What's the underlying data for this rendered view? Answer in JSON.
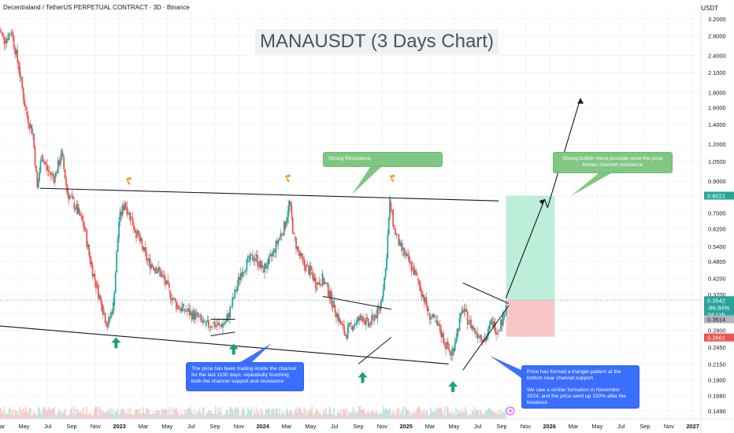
{
  "header": {
    "symbol_line": "Decentraland / TetherUS PERPETUAL CONTRACT · 3D · Binance",
    "currency": "USDT"
  },
  "annotations": {
    "title": "MANAUSDT (3 Days Chart)",
    "strong_resistance": "Strong Resistance",
    "bullish_note": "Strong bullish move possible once the price breaks channel resistance",
    "channel_note": "The price has been trading inside the channel for the last 1100 days, repeatedly touching both the channel support and resistance",
    "triangle_note_1": "Price has formed a triangle pattern at the bottom near channel support.",
    "triangle_note_2": "We saw a similar formation in November 2024, and the price went up 150% after the breakout."
  },
  "colors": {
    "up": "#26a69a",
    "down": "#ef5350",
    "target_zone": "#b2ebd3",
    "stop_zone": "#f8c0c0",
    "support_arrow": "#1e9e7e",
    "resistance_marker": "#f0a030"
  },
  "chart_data": {
    "type": "candlestick",
    "title": "MANAUSDT (3 Days Chart)",
    "scale": "log",
    "ylim": [
      0.14,
      3.4
    ],
    "x_ticks": [
      "Mar",
      "May",
      "Jul",
      "Sep",
      "Nov",
      "2023",
      "Mar",
      "May",
      "Jul",
      "Sep",
      "Nov",
      "2024",
      "Mar",
      "May",
      "Jul",
      "Sep",
      "Nov",
      "2025",
      "Mar",
      "May",
      "Jul",
      "Sep",
      "Nov",
      "2026",
      "Mar",
      "May",
      "Jul",
      "Sep",
      "Nov",
      "2027"
    ],
    "y_ticks": [
      3.2,
      2.8,
      2.4,
      2.1,
      1.8,
      1.6,
      1.4,
      1.2,
      1.05,
      0.9,
      0.8,
      0.7,
      0.62,
      0.54,
      0.48,
      0.42,
      0.37,
      0.32,
      0.28,
      0.245,
      0.215,
      0.19,
      0.168,
      0.149
    ],
    "y_tick_labels": [
      "3.2000",
      "2.8000",
      "2.4000",
      "2.1000",
      "1.8000",
      "1.6000",
      "1.4000",
      "1.2000",
      "1.0500",
      "0.9000",
      "0.8000",
      "0.7000",
      "0.6200",
      "0.5400",
      "0.4800",
      "0.4200",
      "0.3700",
      "0.3200",
      "0.2800",
      "0.2450",
      "0.2150",
      "0.1900",
      "0.1680",
      "0.1490"
    ],
    "price_path": [
      [
        2022.15,
        3.05
      ],
      [
        2022.2,
        2.7
      ],
      [
        2022.25,
        2.9
      ],
      [
        2022.3,
        2.2
      ],
      [
        2022.35,
        1.55
      ],
      [
        2022.4,
        1.3
      ],
      [
        2022.43,
        0.85
      ],
      [
        2022.46,
        1.1
      ],
      [
        2022.5,
        0.98
      ],
      [
        2022.55,
        0.92
      ],
      [
        2022.6,
        1.12
      ],
      [
        2022.64,
        0.82
      ],
      [
        2022.68,
        0.76
      ],
      [
        2022.72,
        0.7
      ],
      [
        2022.76,
        0.62
      ],
      [
        2022.8,
        0.48
      ],
      [
        2022.84,
        0.4
      ],
      [
        2022.88,
        0.34
      ],
      [
        2022.92,
        0.29
      ],
      [
        2022.96,
        0.34
      ],
      [
        2023.0,
        0.66
      ],
      [
        2023.04,
        0.76
      ],
      [
        2023.08,
        0.68
      ],
      [
        2023.12,
        0.6
      ],
      [
        2023.16,
        0.54
      ],
      [
        2023.2,
        0.48
      ],
      [
        2023.25,
        0.46
      ],
      [
        2023.3,
        0.43
      ],
      [
        2023.35,
        0.38
      ],
      [
        2023.4,
        0.34
      ],
      [
        2023.45,
        0.33
      ],
      [
        2023.5,
        0.32
      ],
      [
        2023.55,
        0.31
      ],
      [
        2023.6,
        0.29
      ],
      [
        2023.65,
        0.295
      ],
      [
        2023.7,
        0.29
      ],
      [
        2023.75,
        0.3
      ],
      [
        2023.8,
        0.36
      ],
      [
        2023.85,
        0.44
      ],
      [
        2023.9,
        0.48
      ],
      [
        2023.95,
        0.5
      ],
      [
        2024.0,
        0.45
      ],
      [
        2024.04,
        0.47
      ],
      [
        2024.08,
        0.52
      ],
      [
        2024.12,
        0.58
      ],
      [
        2024.16,
        0.64
      ],
      [
        2024.19,
        0.76
      ],
      [
        2024.22,
        0.58
      ],
      [
        2024.26,
        0.5
      ],
      [
        2024.3,
        0.46
      ],
      [
        2024.34,
        0.44
      ],
      [
        2024.38,
        0.4
      ],
      [
        2024.42,
        0.42
      ],
      [
        2024.46,
        0.38
      ],
      [
        2024.5,
        0.34
      ],
      [
        2024.54,
        0.3
      ],
      [
        2024.58,
        0.27
      ],
      [
        2024.62,
        0.29
      ],
      [
        2024.66,
        0.3
      ],
      [
        2024.7,
        0.31
      ],
      [
        2024.74,
        0.29
      ],
      [
        2024.78,
        0.31
      ],
      [
        2024.82,
        0.33
      ],
      [
        2024.86,
        0.45
      ],
      [
        2024.89,
        0.76
      ],
      [
        2024.92,
        0.62
      ],
      [
        2024.96,
        0.54
      ],
      [
        2025.0,
        0.5
      ],
      [
        2025.04,
        0.46
      ],
      [
        2025.08,
        0.42
      ],
      [
        2025.12,
        0.37
      ],
      [
        2025.16,
        0.32
      ],
      [
        2025.2,
        0.3
      ],
      [
        2025.24,
        0.28
      ],
      [
        2025.28,
        0.25
      ],
      [
        2025.32,
        0.23
      ],
      [
        2025.36,
        0.28
      ],
      [
        2025.4,
        0.33
      ],
      [
        2025.44,
        0.3
      ],
      [
        2025.48,
        0.28
      ],
      [
        2025.52,
        0.27
      ],
      [
        2025.56,
        0.26
      ],
      [
        2025.6,
        0.3
      ],
      [
        2025.64,
        0.28
      ],
      [
        2025.68,
        0.31
      ],
      [
        2025.7,
        0.35
      ]
    ],
    "last_price": "0.3542",
    "change": "-86.84%",
    "countdown": "2d 11h",
    "price_tags": [
      "0.8021",
      "0.3514",
      "0.2661"
    ],
    "drawings": {
      "channel_resistance": [
        [
          2022.45,
          0.85
        ],
        [
          2025.65,
          0.77
        ]
      ],
      "channel_support": [
        [
          2022.15,
          0.29
        ],
        [
          2025.3,
          0.215
        ]
      ],
      "projection": [
        [
          2025.7,
          0.36
        ],
        [
          2025.97,
          0.78
        ],
        [
          2025.99,
          0.73
        ],
        [
          2026.22,
          1.72
        ]
      ],
      "target_zone": [
        0.3542,
        0.8021
      ],
      "stop_zone": [
        0.2661,
        0.3542
      ]
    }
  }
}
